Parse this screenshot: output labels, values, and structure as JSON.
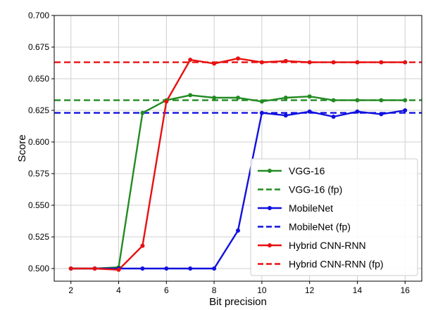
{
  "chart_data": {
    "type": "line",
    "title": "",
    "xlabel": "Bit precision",
    "ylabel": "Score",
    "xlim": [
      1.3,
      16.7
    ],
    "ylim": [
      0.49,
      0.7
    ],
    "xticks": [
      "2",
      "4",
      "6",
      "8",
      "10",
      "12",
      "14",
      "16"
    ],
    "yticks": [
      "0.500",
      "0.525",
      "0.550",
      "0.575",
      "0.600",
      "0.625",
      "0.650",
      "0.675",
      "0.700"
    ],
    "grid": true,
    "legend_position": "bottom-right",
    "x": [
      2,
      3,
      4,
      5,
      6,
      7,
      8,
      9,
      10,
      11,
      12,
      13,
      14,
      15,
      16
    ],
    "series": [
      {
        "name": "VGG-16",
        "style": "solid",
        "color": "#228b22",
        "values": [
          0.5,
          0.5,
          0.501,
          0.623,
          0.633,
          0.637,
          0.635,
          0.635,
          0.632,
          0.635,
          0.636,
          0.633,
          0.633,
          0.633,
          0.633
        ]
      },
      {
        "name": "VGG-16 (fp)",
        "style": "dashed",
        "color": "#228b22",
        "constant": 0.633
      },
      {
        "name": "MobileNet",
        "style": "solid",
        "color": "#1010e0",
        "values": [
          0.5,
          0.5,
          0.5,
          0.5,
          0.5,
          0.5,
          0.5,
          0.53,
          0.623,
          0.621,
          0.624,
          0.62,
          0.624,
          0.622,
          0.625
        ]
      },
      {
        "name": "MobileNet (fp)",
        "style": "dashed",
        "color": "#1010e0",
        "constant": 0.623
      },
      {
        "name": "Hybrid CNN-RNN",
        "style": "solid",
        "color": "#e81010",
        "values": [
          0.5,
          0.5,
          0.499,
          0.518,
          0.632,
          0.665,
          0.662,
          0.666,
          0.663,
          0.664,
          0.663,
          0.663,
          0.663,
          0.663,
          0.663
        ]
      },
      {
        "name": "Hybrid CNN-RNN (fp)",
        "style": "dashed",
        "color": "#e81010",
        "constant": 0.663
      }
    ]
  }
}
